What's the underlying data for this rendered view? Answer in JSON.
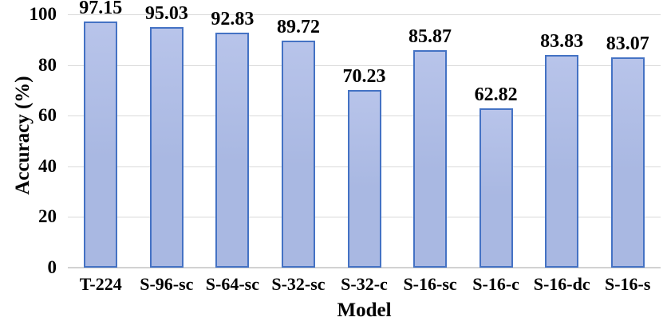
{
  "chart_data": {
    "type": "bar",
    "title": "",
    "categories": [
      "T-224",
      "S-96-sc",
      "S-64-sc",
      "S-32-sc",
      "S-32-c",
      "S-16-sc",
      "S-16-c",
      "S-16-dc",
      "S-16-s"
    ],
    "values": [
      97.15,
      95.03,
      92.83,
      89.72,
      70.23,
      85.87,
      62.82,
      83.83,
      83.07
    ],
    "value_labels": [
      "97.15",
      "95.03",
      "92.83",
      "89.72",
      "70.23",
      "85.87",
      "62.82",
      "83.83",
      "83.07"
    ],
    "xlabel": "Model",
    "ylabel": "Accuracy (%)",
    "ylim": [
      0,
      100
    ],
    "yticks": [
      0,
      20,
      40,
      60,
      80,
      100
    ],
    "grid": "horizontal",
    "legend": "none",
    "colors": {
      "bar_fill": "#a9b8e2",
      "bar_fill_light": "#b8c4ea",
      "bar_border": "#4472c4",
      "gridline": "#d9d9d9",
      "axis_line": "#d2d2d2",
      "text": "#000000"
    }
  }
}
